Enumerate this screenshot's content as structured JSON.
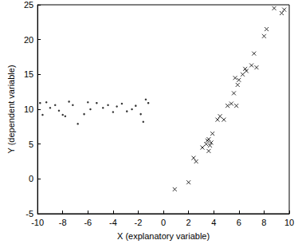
{
  "chart_data": {
    "type": "scatter",
    "x_label": "X (explanatory variable)",
    "y_label": "Y (dependent variable)",
    "xlim": [
      -10,
      10
    ],
    "xticks": [
      -10,
      -8,
      -6,
      -4,
      -2,
      0,
      2,
      4,
      6,
      8,
      10
    ],
    "ylim": [
      -5,
      25
    ],
    "yticks": [
      -5,
      0,
      5,
      10,
      15,
      20,
      25
    ],
    "grid": false,
    "series": [
      {
        "marker": "dot",
        "color": "#000000",
        "x": [
          -9.8,
          -9.6,
          -9.3,
          -9.0,
          -8.6,
          -8.3,
          -8.0,
          -7.8,
          -7.5,
          -7.2,
          -6.8,
          -6.3,
          -6.0,
          -5.8,
          -5.3,
          -4.8,
          -4.4,
          -4.0,
          -3.7,
          -3.3,
          -2.9,
          -2.5,
          -2.2,
          -1.8,
          -1.6,
          -1.4,
          -1.2
        ],
        "values": [
          10.9,
          9.2,
          11.0,
          10.2,
          10.6,
          9.8,
          9.2,
          9.0,
          11.1,
          10.6,
          7.9,
          9.3,
          11.0,
          10.0,
          10.9,
          10.2,
          10.6,
          9.6,
          10.4,
          10.8,
          9.7,
          10.0,
          10.5,
          9.3,
          8.2,
          11.4,
          10.9
        ]
      },
      {
        "marker": "cross",
        "color": "#000000",
        "x": [
          0.9,
          2.0,
          2.4,
          2.6,
          3.1,
          3.4,
          3.5,
          3.6,
          3.6,
          3.7,
          3.8,
          3.9,
          4.3,
          4.5,
          4.8,
          5.1,
          5.4,
          5.6,
          5.7,
          5.8,
          5.9,
          6.0,
          6.3,
          6.5,
          6.6,
          7.0,
          7.2,
          7.4,
          8.0,
          8.2,
          8.8,
          9.4,
          9.6
        ],
        "values": [
          -1.5,
          -0.5,
          3.0,
          2.5,
          4.5,
          5.0,
          5.5,
          4.0,
          5.7,
          4.8,
          5.2,
          6.5,
          8.5,
          9.0,
          8.5,
          10.5,
          10.8,
          12.3,
          14.5,
          10.5,
          13.5,
          14.2,
          15.0,
          15.8,
          15.5,
          16.3,
          18.0,
          16.0,
          20.5,
          21.5,
          24.5,
          23.8,
          24.3
        ]
      }
    ]
  }
}
